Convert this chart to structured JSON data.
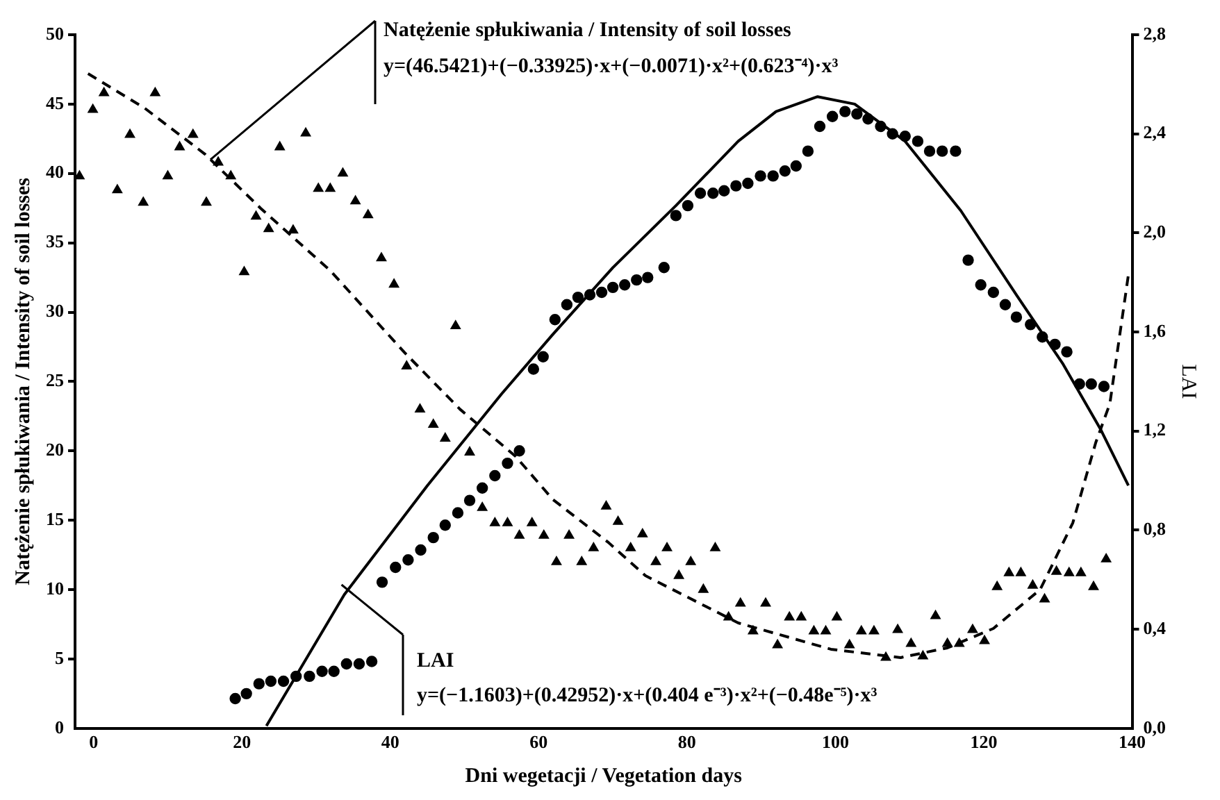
{
  "chart_data": {
    "type": "scatter",
    "xlabel": "Dni wegetacji / Vegetation days",
    "ylabel": "Natężenie spłukiwania / Intensity of soil losses",
    "y2label": "LAI",
    "xlim": [
      -2.5,
      140
    ],
    "xticks": [
      0,
      20,
      40,
      60,
      80,
      100,
      120,
      140
    ],
    "ylim": [
      0,
      50
    ],
    "yticks": [
      0,
      5,
      10,
      15,
      20,
      25,
      30,
      35,
      40,
      45,
      50
    ],
    "y2lim": [
      0,
      2.8
    ],
    "y2ticks": [
      {
        "value": 0,
        "label": "0,0"
      },
      {
        "value": 0.4,
        "label": "0,4"
      },
      {
        "value": 0.8,
        "label": "0,8"
      },
      {
        "value": 1.2,
        "label": "1,2"
      },
      {
        "value": 1.6,
        "label": "1,6"
      },
      {
        "value": 2.0,
        "label": "2,0"
      },
      {
        "value": 2.4,
        "label": "2,4"
      },
      {
        "value": 2.8,
        "label": "2,8"
      }
    ],
    "grid": false,
    "legend": false,
    "annotations": [
      {
        "text": "Natężenie spłukiwania / Intensity of soil losses",
        "x": 15,
        "y": 41.4
      },
      "y=(46.5421)+(−0.33925)·x+(−0.0071)·x²+(0.623⁻⁴)·x³",
      "LAI",
      "y=(−1.1603)+(0.42952)·x+(0.404 e⁻³)·x²+(−0.48e⁻⁵)·x³"
    ],
    "series": [
      {
        "type": "scatter",
        "marker": "triangle",
        "color": "#000000",
        "x": [
          -1.9,
          -0.1,
          1.4,
          3.2,
          4.9,
          6.7,
          8.3,
          10.0,
          11.6,
          13.4,
          15.2,
          16.8,
          18.5,
          20.3,
          21.9,
          23.6,
          25.1,
          26.9,
          28.6,
          30.3,
          31.9,
          33.6,
          35.3,
          37.0,
          38.8,
          40.5,
          42.2,
          44.0,
          45.8,
          47.4,
          48.8,
          50.7,
          52.4,
          54.1,
          55.8,
          57.4,
          59.1,
          60.7,
          62.4,
          64.1,
          65.8,
          67.4,
          69.1,
          70.7,
          72.4,
          74.0,
          75.8,
          77.3,
          78.9,
          80.5,
          82.2,
          83.8,
          85.6,
          87.2,
          88.9,
          90.6,
          92.2,
          93.8,
          95.4,
          97.1,
          98.7,
          100.2,
          101.9,
          103.5,
          105.2,
          106.8,
          108.4,
          110.2,
          111.8,
          113.5,
          115.1,
          116.7,
          118.5,
          120.1,
          121.8,
          123.4,
          125.0,
          126.6,
          128.2,
          129.8,
          131.5,
          133.1,
          134.8,
          136.5
        ],
        "values": [
          39.8,
          44.6,
          45.8,
          38.8,
          42.8,
          37.9,
          45.8,
          39.8,
          41.9,
          42.8,
          37.9,
          40.8,
          39.8,
          32.9,
          36.9,
          36.0,
          41.9,
          35.9,
          42.9,
          38.9,
          38.9,
          40.0,
          38.0,
          37.0,
          33.9,
          32.0,
          26.1,
          23.0,
          21.9,
          20.9,
          29.0,
          19.9,
          15.9,
          14.8,
          14.8,
          13.9,
          14.8,
          13.9,
          12.0,
          13.9,
          12.0,
          13.0,
          16.0,
          14.9,
          13.0,
          14.0,
          12.0,
          13.0,
          11.0,
          12.0,
          10.0,
          13.0,
          8.0,
          9.0,
          7.0,
          9.0,
          6.0,
          8.0,
          8.0,
          7.0,
          7.0,
          8.0,
          6.0,
          7.0,
          7.0,
          5.1,
          7.1,
          6.1,
          5.2,
          8.1,
          6.1,
          6.1,
          7.1,
          6.3,
          10.2,
          11.2,
          11.2,
          10.3,
          9.3,
          11.3,
          11.2,
          11.2,
          10.2,
          12.2
        ]
      },
      {
        "type": "scatter",
        "marker": "circle",
        "axis": "y2",
        "color": "#000000",
        "x": [
          19.1,
          20.6,
          22.3,
          23.9,
          25.6,
          27.3,
          29.1,
          30.8,
          32.4,
          34.1,
          35.8,
          37.5,
          38.9,
          40.7,
          42.4,
          44.1,
          45.8,
          47.4,
          49.1,
          50.7,
          52.4,
          54.1,
          55.8,
          57.4,
          59.3,
          60.6,
          62.2,
          63.8,
          65.3,
          66.9,
          68.5,
          70.0,
          71.6,
          73.2,
          74.7,
          76.9,
          78.5,
          80.1,
          81.8,
          83.5,
          85.0,
          86.6,
          88.2,
          89.9,
          91.6,
          93.2,
          94.7,
          96.3,
          97.9,
          99.6,
          101.3,
          102.9,
          104.4,
          106.1,
          107.7,
          109.4,
          111.1,
          112.7,
          114.4,
          116.2,
          117.9,
          119.6,
          121.3,
          122.9,
          124.4,
          126.3,
          127.9,
          129.6,
          131.2,
          132.9,
          134.5,
          136.2
        ],
        "values": [
          0.12,
          0.14,
          0.18,
          0.19,
          0.19,
          0.21,
          0.21,
          0.23,
          0.23,
          0.26,
          0.26,
          0.27,
          0.59,
          0.65,
          0.68,
          0.72,
          0.77,
          0.82,
          0.87,
          0.92,
          0.97,
          1.02,
          1.07,
          1.12,
          1.45,
          1.5,
          1.65,
          1.71,
          1.74,
          1.75,
          1.76,
          1.78,
          1.79,
          1.81,
          1.82,
          1.86,
          2.07,
          2.11,
          2.16,
          2.16,
          2.17,
          2.19,
          2.2,
          2.23,
          2.23,
          2.25,
          2.27,
          2.33,
          2.43,
          2.47,
          2.49,
          2.48,
          2.46,
          2.43,
          2.4,
          2.39,
          2.37,
          2.33,
          2.33,
          2.33,
          1.89,
          1.79,
          1.76,
          1.71,
          1.66,
          1.63,
          1.58,
          1.55,
          1.52,
          1.39,
          1.39,
          1.38
        ]
      },
      {
        "type": "line",
        "marker": "none",
        "line_style": "solid",
        "axis": "y2",
        "color": "#000000",
        "x": [
          23.3,
          33.8,
          45,
          55.0,
          61.9,
          70,
          78.5,
          86.9,
          92,
          97.6,
          102.6,
          109.4,
          116.9,
          124.4,
          130.7,
          135.7,
          139.5
        ],
        "values": [
          0.01,
          0.54,
          0.98,
          1.35,
          1.59,
          1.86,
          2.11,
          2.37,
          2.49,
          2.55,
          2.52,
          2.37,
          2.09,
          1.75,
          1.47,
          1.21,
          0.98
        ]
      },
      {
        "type": "line",
        "marker": "none",
        "line_style": "dashed",
        "color": "#000000",
        "x": [
          -0.75,
          6.9,
          15.0,
          22.5,
          31.9,
          41.9,
          49.4,
          56.9,
          61.9,
          69.4,
          74.4,
          86.9,
          99.4,
          108.8,
          115.1,
          121.3,
          127.6,
          132.0,
          135.1,
          137.0,
          139.5
        ],
        "values": [
          47.2,
          44.7,
          41.4,
          37.5,
          33.0,
          27.1,
          23.0,
          19.6,
          16.5,
          13.4,
          11.0,
          7.6,
          5.7,
          5.1,
          5.8,
          7.2,
          10.0,
          14.8,
          20.6,
          23.4,
          32.7
        ]
      }
    ]
  }
}
